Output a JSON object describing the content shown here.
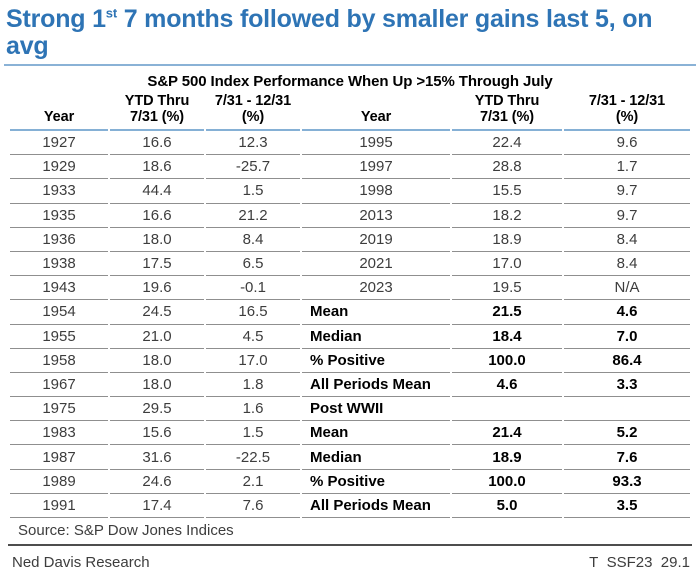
{
  "page_title": {
    "part1": "Strong 1",
    "superscript": "st",
    "part2": " 7 months followed by smaller gains last 5, on avg"
  },
  "chart_data": {
    "type": "table",
    "title": "S&P 500 Index Performance When Up >15% Through July",
    "header": {
      "line1": [
        "",
        "YTD Thru",
        "7/31 - 12/31",
        "",
        "YTD Thru",
        "7/31 - 12/31"
      ],
      "line2": [
        "Year",
        "7/31 (%)",
        "(%)",
        "Year",
        "7/31 (%)",
        "(%)"
      ]
    },
    "rows": [
      {
        "cells": [
          "1927",
          "16.6",
          "12.3",
          "1995",
          "22.4",
          "9.6"
        ],
        "right_style": "year"
      },
      {
        "cells": [
          "1929",
          "18.6",
          "-25.7",
          "1997",
          "28.8",
          "1.7"
        ],
        "right_style": "year"
      },
      {
        "cells": [
          "1933",
          "44.4",
          "1.5",
          "1998",
          "15.5",
          "9.7"
        ],
        "right_style": "year"
      },
      {
        "cells": [
          "1935",
          "16.6",
          "21.2",
          "2013",
          "18.2",
          "9.7"
        ],
        "right_style": "year"
      },
      {
        "cells": [
          "1936",
          "18.0",
          "8.4",
          "2019",
          "18.9",
          "8.4"
        ],
        "right_style": "year"
      },
      {
        "cells": [
          "1938",
          "17.5",
          "6.5",
          "2021",
          "17.0",
          "8.4"
        ],
        "right_style": "year"
      },
      {
        "cells": [
          "1943",
          "19.6",
          "-0.1",
          "2023",
          "19.5",
          "N/A"
        ],
        "right_style": "year"
      },
      {
        "cells": [
          "1954",
          "24.5",
          "16.5",
          "Mean",
          "21.5",
          "4.6"
        ],
        "right_style": "stat"
      },
      {
        "cells": [
          "1955",
          "21.0",
          "4.5",
          "Median",
          "18.4",
          "7.0"
        ],
        "right_style": "stat"
      },
      {
        "cells": [
          "1958",
          "18.0",
          "17.0",
          "% Positive",
          "100.0",
          "86.4"
        ],
        "right_style": "stat"
      },
      {
        "cells": [
          "1967",
          "18.0",
          "1.8",
          "All Periods Mean",
          "4.6",
          "3.3"
        ],
        "right_style": "stat"
      },
      {
        "cells": [
          "1975",
          "29.5",
          "1.6",
          "Post WWII",
          "",
          ""
        ],
        "right_style": "stat"
      },
      {
        "cells": [
          "1983",
          "15.6",
          "1.5",
          "Mean",
          "21.4",
          "5.2"
        ],
        "right_style": "stat"
      },
      {
        "cells": [
          "1987",
          "31.6",
          "-22.5",
          "Median",
          "18.9",
          "7.6"
        ],
        "right_style": "stat"
      },
      {
        "cells": [
          "1989",
          "24.6",
          "2.1",
          "% Positive",
          "100.0",
          "93.3"
        ],
        "right_style": "stat"
      },
      {
        "cells": [
          "1991",
          "17.4",
          "7.6",
          "All Periods Mean",
          "5.0",
          "3.5"
        ],
        "right_style": "stat"
      }
    ]
  },
  "footer": {
    "source": "Source: S&P Dow Jones Indices",
    "brand": "Ned Davis Research",
    "code": "T_SSF23_29.1"
  },
  "colors": {
    "title_blue": "#2e74b5",
    "header_rule_blue": "#85b0d5",
    "row_line_gray": "#8f8f8f",
    "footer_rule_dark": "#4d4d4d",
    "body_text": "#3d3d3d"
  }
}
